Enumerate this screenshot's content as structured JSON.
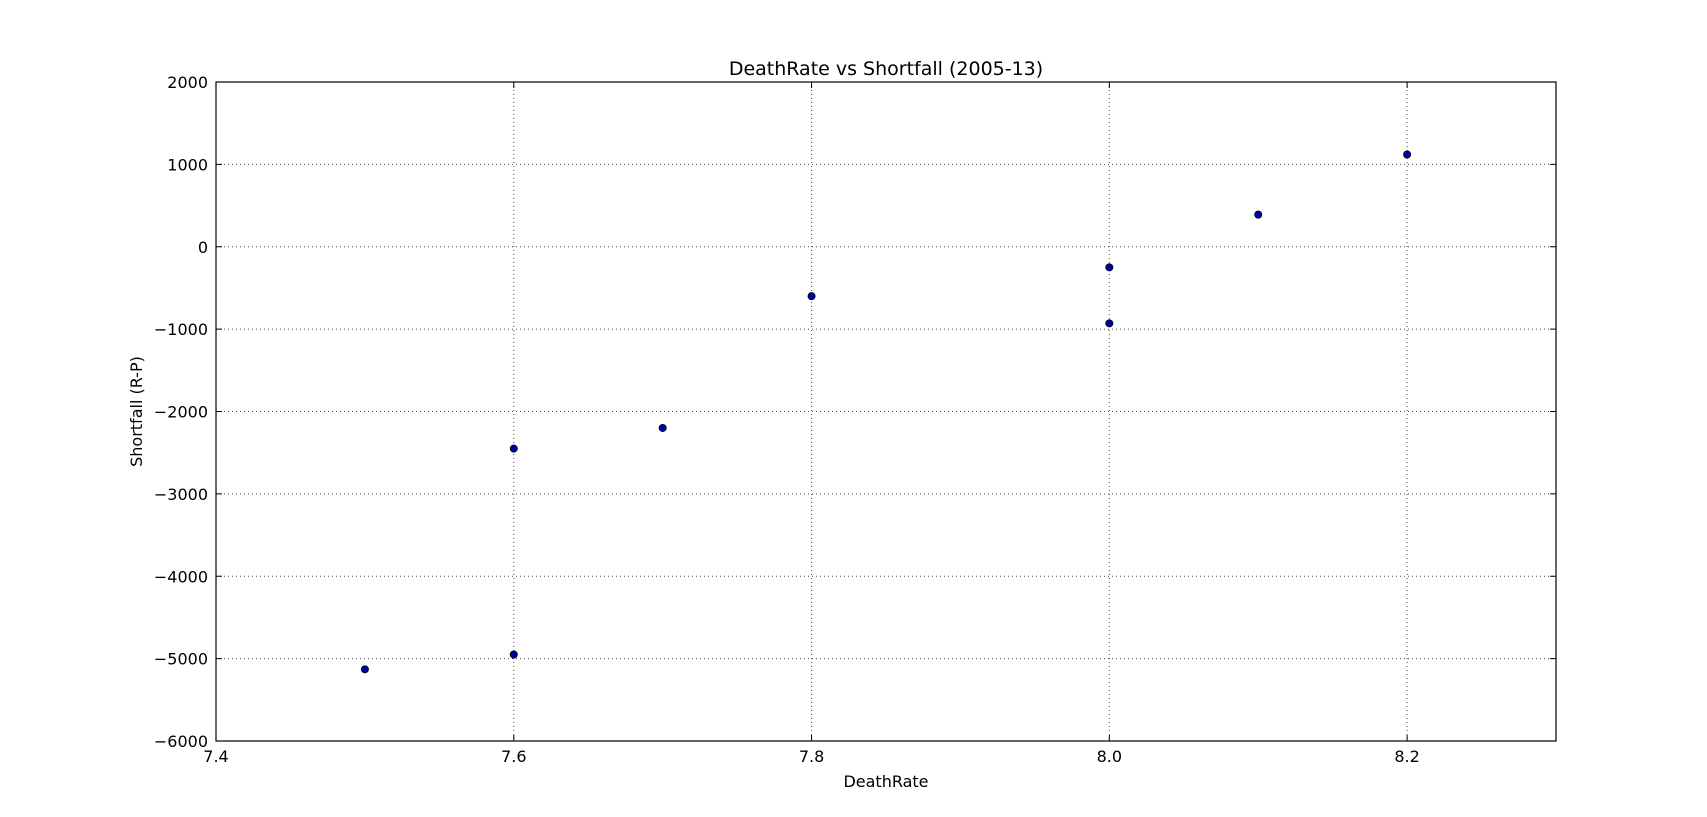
{
  "chart_data": {
    "type": "scatter",
    "title": "DeathRate vs Shortfall (2005-13)",
    "xlabel": "DeathRate",
    "ylabel": "Shortfall (R-P)",
    "xlim": [
      7.4,
      8.3
    ],
    "ylim": [
      -6000,
      2000
    ],
    "x_ticks": [
      7.4,
      7.6,
      7.8,
      8.0,
      8.2
    ],
    "x_tick_labels": [
      "7.4",
      "7.6",
      "7.8",
      "8.0",
      "8.2"
    ],
    "y_ticks": [
      2000,
      1000,
      0,
      -1000,
      -2000,
      -3000,
      -4000,
      -5000,
      -6000
    ],
    "y_tick_labels": [
      "2000",
      "1000",
      "0",
      "−1000",
      "−2000",
      "−3000",
      "−4000",
      "−5000",
      "−6000"
    ],
    "grid": true,
    "points": [
      {
        "x": 7.5,
        "y": -5130
      },
      {
        "x": 7.6,
        "y": -4950
      },
      {
        "x": 7.6,
        "y": -2450
      },
      {
        "x": 7.7,
        "y": -2200
      },
      {
        "x": 7.8,
        "y": -600
      },
      {
        "x": 8.0,
        "y": -930
      },
      {
        "x": 8.0,
        "y": -250
      },
      {
        "x": 8.1,
        "y": 390
      },
      {
        "x": 8.2,
        "y": 1120
      }
    ],
    "colors": {
      "point_fill": "#0000aa",
      "point_edge": "#000000"
    }
  }
}
